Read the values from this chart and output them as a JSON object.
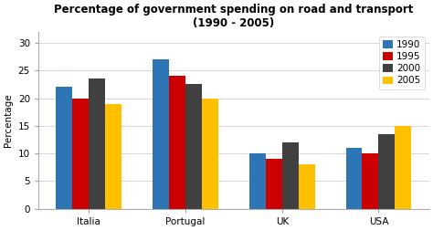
{
  "title": "Percentage of government spending on road and transport\n(1990 - 2005)",
  "ylabel": "Percentage",
  "categories": [
    "Italia",
    "Portugal",
    "UK",
    "USA"
  ],
  "years": [
    "1990",
    "1995",
    "2000",
    "2005"
  ],
  "values": {
    "1990": [
      22,
      27,
      10,
      11
    ],
    "1995": [
      20,
      24,
      9,
      10
    ],
    "2000": [
      23.5,
      22.5,
      12,
      13.5
    ],
    "2005": [
      19,
      20,
      8,
      15
    ]
  },
  "colors": {
    "1990": "#2E75B6",
    "1995": "#CC0000",
    "2000": "#404040",
    "2005": "#FFC000"
  },
  "ylim": [
    0,
    32
  ],
  "yticks": [
    0,
    5,
    10,
    15,
    20,
    25,
    30
  ],
  "bar_width": 0.17,
  "background_color": "#ffffff",
  "title_fontsize": 8.5,
  "axis_fontsize": 7.5,
  "legend_fontsize": 7.5,
  "ylabel_fontsize": 7.5
}
